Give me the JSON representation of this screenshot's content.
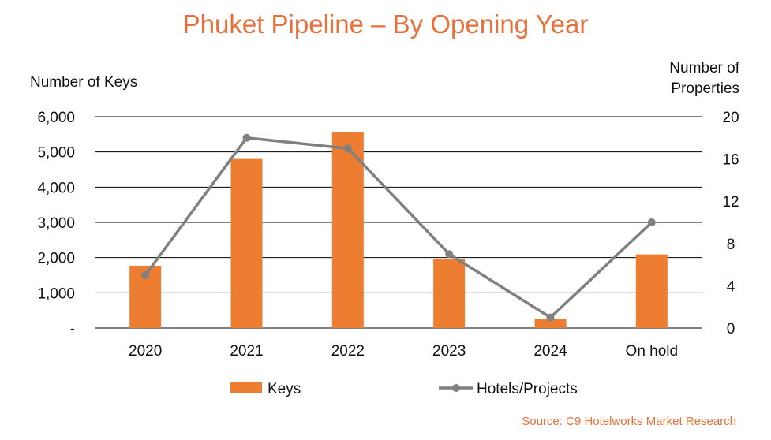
{
  "chart_data": {
    "type": "bar",
    "title": "Phuket Pipeline – By Opening Year",
    "ylabel_left": "Number of Keys",
    "ylabel_right_lines": [
      "Number of",
      "Properties"
    ],
    "categories": [
      "2020",
      "2021",
      "2022",
      "2023",
      "2024",
      "On hold"
    ],
    "ylim_left": [
      0,
      6000
    ],
    "yticks_left": [
      0,
      1000,
      2000,
      3000,
      4000,
      5000,
      6000
    ],
    "ytick_labels_left": [
      "-",
      "1,000",
      "2,000",
      "3,000",
      "4,000",
      "5,000",
      "6,000"
    ],
    "ylim_right": [
      0,
      20
    ],
    "yticks_right": [
      0,
      4,
      8,
      12,
      16,
      20
    ],
    "series": [
      {
        "name": "Keys",
        "type": "bar",
        "axis": "left",
        "color": "#ed7d31",
        "values": [
          1770,
          4800,
          5570,
          1950,
          260,
          2090
        ]
      },
      {
        "name": "Hotels/Projects",
        "type": "line",
        "axis": "right",
        "color": "#808080",
        "values": [
          5,
          18,
          17,
          7,
          1,
          10
        ]
      }
    ],
    "grid": true,
    "legend_position": "bottom"
  },
  "source": "Source: C9 Hotelworks Market Research"
}
